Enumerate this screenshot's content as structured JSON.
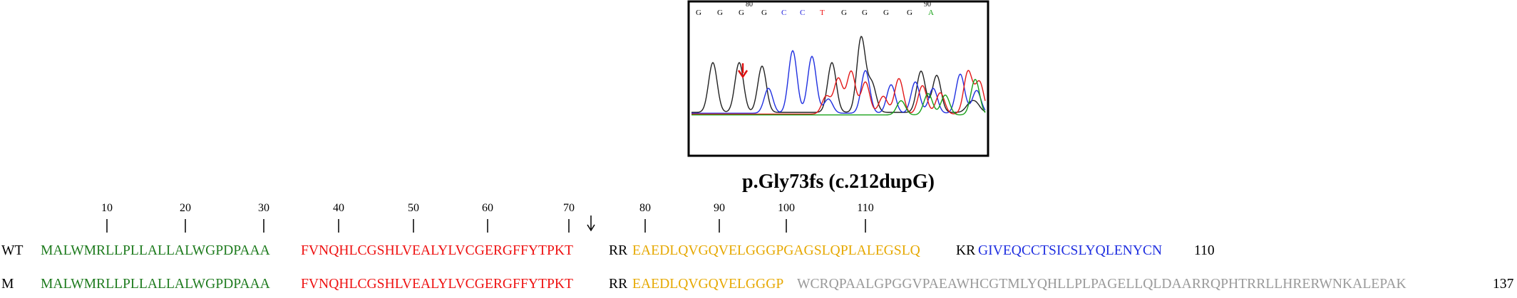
{
  "chromatogram": {
    "bases": [
      "G",
      "G",
      "G",
      "G",
      "C",
      "C",
      "T",
      "G",
      "G",
      "G",
      "G",
      "A"
    ],
    "base_colors": {
      "G": "#000000",
      "C": "#2222dd",
      "T": "#ee1111",
      "A": "#1aa31a"
    },
    "position_labels": [
      "80",
      "90"
    ],
    "arrow_color": "#e01010"
  },
  "mutation_label": "p.Gly73fs (c.212dupG)",
  "ruler": {
    "ticks": [
      "10",
      "20",
      "30",
      "40",
      "50",
      "60",
      "70",
      "80",
      "90",
      "100",
      "110"
    ],
    "mutation_arrow": "↓"
  },
  "colors": {
    "signal": "#1e7b1e",
    "b_chain": "#ee1111",
    "c_peptide": "#e6a800",
    "a_chain": "#1f2fe0",
    "dibasic": "#000000",
    "frameshift": "#999999"
  },
  "wt": {
    "label": "WT",
    "signal": "MALWMRLLPLLALLALWGPDPAAA",
    "b_chain": "FVNQHLCGSHLVEALYLVCGERGFFYTPKT",
    "dibasic1": "RR",
    "c_peptide": "EAEDLQVGQVELGGGPGAGSLQPLALEGSLQ",
    "dibasic2": "KR",
    "a_chain": "GIVEQCCTSICSLYQLENYCN",
    "length": "110"
  },
  "mutant": {
    "label": "M",
    "signal": "MALWMRLLPLLALLALWGPDPAAA",
    "b_chain": "FVNQHLCGSHLVEALYLVCGERGFFYTPKT",
    "dibasic1": "RR",
    "c_peptide": "EAEDLQVGQVELGGGP",
    "frameshift": "WCRQPAALGPGGVPAEAWHCGTMLYQHLLPLPAGELLQLDAARRQPHTRRLLHRERWNKALEPAK",
    "length": "137"
  }
}
